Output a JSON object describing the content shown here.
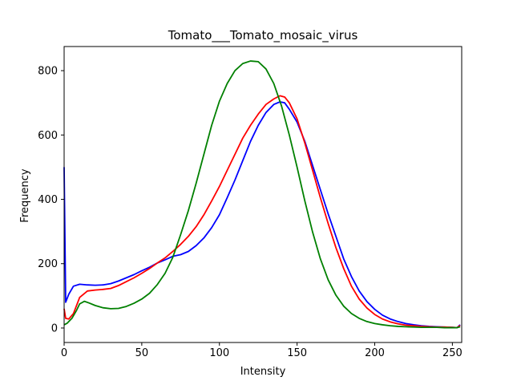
{
  "chart_data": {
    "type": "line",
    "title": "Tomato___Tomato_mosaic_virus",
    "xlabel": "Intensity",
    "ylabel": "Frequency",
    "xlim": [
      0,
      256
    ],
    "ylim": [
      -45,
      875
    ],
    "xticks": [
      0,
      50,
      100,
      150,
      200,
      250
    ],
    "yticks": [
      0,
      200,
      400,
      600,
      800
    ],
    "grid": false,
    "legend": "none",
    "series": [
      {
        "color": "#0000ff",
        "points": [
          [
            0,
            500
          ],
          [
            1,
            80
          ],
          [
            3,
            105
          ],
          [
            6,
            130
          ],
          [
            10,
            136
          ],
          [
            15,
            134
          ],
          [
            20,
            133
          ],
          [
            25,
            134
          ],
          [
            30,
            138
          ],
          [
            35,
            146
          ],
          [
            40,
            156
          ],
          [
            45,
            166
          ],
          [
            50,
            178
          ],
          [
            55,
            189
          ],
          [
            60,
            202
          ],
          [
            65,
            212
          ],
          [
            70,
            223
          ],
          [
            75,
            228
          ],
          [
            80,
            238
          ],
          [
            85,
            256
          ],
          [
            90,
            280
          ],
          [
            95,
            312
          ],
          [
            100,
            352
          ],
          [
            105,
            405
          ],
          [
            110,
            460
          ],
          [
            115,
            520
          ],
          [
            120,
            580
          ],
          [
            125,
            630
          ],
          [
            130,
            670
          ],
          [
            135,
            695
          ],
          [
            139,
            703
          ],
          [
            142,
            700
          ],
          [
            145,
            680
          ],
          [
            150,
            640
          ],
          [
            155,
            580
          ],
          [
            160,
            505
          ],
          [
            165,
            430
          ],
          [
            170,
            355
          ],
          [
            175,
            285
          ],
          [
            180,
            215
          ],
          [
            185,
            160
          ],
          [
            190,
            115
          ],
          [
            195,
            82
          ],
          [
            200,
            58
          ],
          [
            205,
            40
          ],
          [
            210,
            28
          ],
          [
            215,
            20
          ],
          [
            220,
            14
          ],
          [
            225,
            10
          ],
          [
            230,
            7
          ],
          [
            235,
            5
          ],
          [
            240,
            4
          ],
          [
            245,
            3
          ],
          [
            250,
            2
          ],
          [
            253,
            1
          ],
          [
            255,
            10
          ]
        ]
      },
      {
        "color": "#ff0000",
        "points": [
          [
            0,
            60
          ],
          [
            1,
            30
          ],
          [
            3,
            28
          ],
          [
            6,
            45
          ],
          [
            10,
            95
          ],
          [
            15,
            115
          ],
          [
            20,
            118
          ],
          [
            25,
            120
          ],
          [
            30,
            123
          ],
          [
            35,
            132
          ],
          [
            40,
            144
          ],
          [
            45,
            156
          ],
          [
            50,
            170
          ],
          [
            55,
            185
          ],
          [
            60,
            202
          ],
          [
            65,
            218
          ],
          [
            70,
            238
          ],
          [
            75,
            260
          ],
          [
            80,
            285
          ],
          [
            85,
            315
          ],
          [
            90,
            352
          ],
          [
            95,
            395
          ],
          [
            100,
            440
          ],
          [
            105,
            490
          ],
          [
            110,
            540
          ],
          [
            115,
            590
          ],
          [
            120,
            630
          ],
          [
            125,
            665
          ],
          [
            130,
            695
          ],
          [
            135,
            712
          ],
          [
            139,
            722
          ],
          [
            142,
            718
          ],
          [
            145,
            700
          ],
          [
            150,
            650
          ],
          [
            155,
            575
          ],
          [
            160,
            490
          ],
          [
            165,
            405
          ],
          [
            170,
            325
          ],
          [
            175,
            250
          ],
          [
            180,
            185
          ],
          [
            185,
            130
          ],
          [
            190,
            90
          ],
          [
            195,
            62
          ],
          [
            200,
            42
          ],
          [
            205,
            28
          ],
          [
            210,
            19
          ],
          [
            215,
            13
          ],
          [
            220,
            9
          ],
          [
            225,
            7
          ],
          [
            230,
            5
          ],
          [
            235,
            4
          ],
          [
            240,
            3
          ],
          [
            245,
            3
          ],
          [
            250,
            2
          ],
          [
            253,
            1
          ],
          [
            255,
            8
          ]
        ]
      },
      {
        "color": "#008000",
        "points": [
          [
            0,
            10
          ],
          [
            2,
            15
          ],
          [
            5,
            30
          ],
          [
            8,
            55
          ],
          [
            10,
            75
          ],
          [
            13,
            83
          ],
          [
            16,
            78
          ],
          [
            20,
            70
          ],
          [
            25,
            63
          ],
          [
            30,
            60
          ],
          [
            35,
            61
          ],
          [
            40,
            67
          ],
          [
            45,
            77
          ],
          [
            50,
            90
          ],
          [
            55,
            108
          ],
          [
            60,
            135
          ],
          [
            65,
            170
          ],
          [
            70,
            220
          ],
          [
            75,
            290
          ],
          [
            80,
            365
          ],
          [
            85,
            450
          ],
          [
            90,
            540
          ],
          [
            95,
            630
          ],
          [
            100,
            705
          ],
          [
            105,
            760
          ],
          [
            110,
            800
          ],
          [
            115,
            822
          ],
          [
            120,
            830
          ],
          [
            125,
            828
          ],
          [
            130,
            805
          ],
          [
            135,
            760
          ],
          [
            140,
            690
          ],
          [
            145,
            600
          ],
          [
            150,
            500
          ],
          [
            155,
            395
          ],
          [
            160,
            298
          ],
          [
            165,
            215
          ],
          [
            170,
            150
          ],
          [
            175,
            102
          ],
          [
            180,
            68
          ],
          [
            185,
            45
          ],
          [
            190,
            30
          ],
          [
            195,
            20
          ],
          [
            200,
            14
          ],
          [
            205,
            10
          ],
          [
            210,
            7
          ],
          [
            215,
            5
          ],
          [
            220,
            4
          ],
          [
            225,
            3
          ],
          [
            230,
            2
          ],
          [
            235,
            2
          ],
          [
            240,
            2
          ],
          [
            245,
            1
          ],
          [
            250,
            1
          ],
          [
            253,
            1
          ],
          [
            255,
            4
          ]
        ]
      }
    ]
  }
}
